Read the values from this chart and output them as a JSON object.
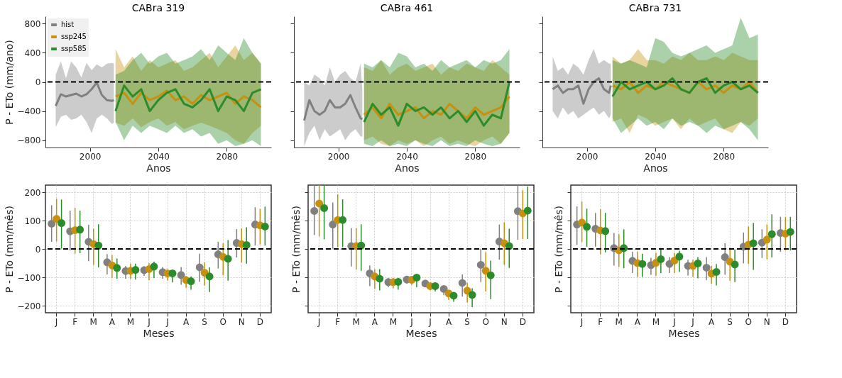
{
  "chart_data": [
    {
      "type": "line",
      "title": "CABra 319",
      "xlabel": "Anos",
      "ylabel": "P - ETo (mm/ano)",
      "xlim": [
        1974,
        2106
      ],
      "ylim": [
        -900,
        900
      ],
      "xticks": [
        2000,
        2040,
        2080
      ],
      "yticks": [
        -800,
        -400,
        0,
        400,
        800
      ],
      "legend": "top left",
      "ref_lines": [
        {
          "axis": "y",
          "value": 0,
          "color": "#000000",
          "line_style": "dashed"
        }
      ],
      "series": [
        {
          "name": "hist",
          "color": "#808080",
          "x": [
            1980,
            1983,
            1986,
            1989,
            1992,
            1995,
            1998,
            2001,
            2004,
            2007,
            2010,
            2013,
            2014
          ],
          "values": [
            -330,
            -170,
            -200,
            -180,
            -160,
            -200,
            -170,
            -100,
            -10,
            -180,
            -250,
            -260,
            -250
          ],
          "lower": [
            -620,
            -480,
            -450,
            -520,
            -500,
            -450,
            -550,
            -700,
            -500,
            -450,
            -500,
            -580,
            -560
          ],
          "upper": [
            100,
            280,
            50,
            280,
            200,
            60,
            260,
            160,
            240,
            200,
            250,
            260,
            250
          ]
        },
        {
          "name": "ssp245",
          "color": "#c8900e",
          "x": [
            2015,
            2020,
            2025,
            2030,
            2035,
            2040,
            2045,
            2050,
            2055,
            2060,
            2065,
            2070,
            2075,
            2080,
            2085,
            2090,
            2095,
            2100
          ],
          "values": [
            -200,
            -150,
            -300,
            -150,
            -250,
            -200,
            -120,
            -250,
            -200,
            -300,
            -180,
            -250,
            -200,
            -150,
            -300,
            -200,
            -250,
            -350
          ],
          "lower": [
            -560,
            -600,
            -500,
            -620,
            -550,
            -500,
            -600,
            -550,
            -650,
            -600,
            -560,
            -600,
            -650,
            -700,
            -800,
            -850,
            -700,
            -600
          ],
          "upper": [
            450,
            200,
            350,
            150,
            300,
            200,
            250,
            300,
            150,
            200,
            300,
            400,
            200,
            350,
            500,
            300,
            400,
            250
          ]
        },
        {
          "name": "ssp585",
          "color": "#2a8c2a",
          "x": [
            2015,
            2020,
            2025,
            2030,
            2035,
            2040,
            2045,
            2050,
            2055,
            2060,
            2065,
            2070,
            2075,
            2080,
            2085,
            2090,
            2095,
            2100
          ],
          "values": [
            -400,
            -50,
            -200,
            -100,
            -400,
            -250,
            -150,
            -100,
            -300,
            -350,
            -250,
            -100,
            -400,
            -200,
            -250,
            -400,
            -150,
            -100
          ],
          "lower": [
            -550,
            -800,
            -600,
            -700,
            -600,
            -650,
            -700,
            -600,
            -700,
            -650,
            -750,
            -700,
            -850,
            -800,
            -880,
            -850,
            -800,
            -880
          ],
          "upper": [
            100,
            150,
            300,
            400,
            250,
            350,
            400,
            250,
            300,
            350,
            450,
            300,
            500,
            400,
            300,
            600,
            400,
            250
          ]
        }
      ]
    },
    {
      "type": "line",
      "title": "CABra 461",
      "xlabel": "Anos",
      "xlim": [
        1974,
        2106
      ],
      "ylim": [
        -900,
        900
      ],
      "xticks": [
        2000,
        2040,
        2080
      ],
      "yticks": [
        -800,
        -400,
        0,
        400,
        800
      ],
      "tick_labels": "x",
      "ref_lines": [
        {
          "axis": "y",
          "value": 0,
          "color": "#000000",
          "line_style": "dashed"
        }
      ],
      "series": [
        {
          "color": "#808080",
          "x": [
            1980,
            1983,
            1986,
            1989,
            1992,
            1995,
            1998,
            2001,
            2004,
            2007,
            2010,
            2013,
            2014
          ],
          "values": [
            -530,
            -250,
            -400,
            -450,
            -400,
            -250,
            -350,
            -350,
            -300,
            -180,
            -350,
            -500,
            -510
          ],
          "lower": [
            -880,
            -700,
            -600,
            -800,
            -650,
            -750,
            -700,
            -650,
            -800,
            -700,
            -650,
            -750,
            -750
          ],
          "upper": [
            0,
            -50,
            100,
            50,
            -50,
            200,
            0,
            100,
            150,
            50,
            0,
            250,
            -100
          ]
        },
        {
          "color": "#c8900e",
          "x": [
            2015,
            2020,
            2025,
            2030,
            2035,
            2040,
            2045,
            2050,
            2055,
            2060,
            2065,
            2070,
            2075,
            2080,
            2085,
            2090,
            2095,
            2100
          ],
          "values": [
            -450,
            -350,
            -500,
            -300,
            -450,
            -400,
            -350,
            -500,
            -400,
            -450,
            -300,
            -400,
            -500,
            -350,
            -450,
            -400,
            -350,
            -200
          ],
          "lower": [
            -800,
            -750,
            -850,
            -880,
            -800,
            -850,
            -800,
            -880,
            -800,
            -750,
            -850,
            -800,
            -850,
            -880,
            -800,
            -750,
            -850,
            -700
          ],
          "upper": [
            200,
            150,
            300,
            100,
            200,
            250,
            150,
            200,
            250,
            100,
            200,
            150,
            250,
            200,
            150,
            300,
            200,
            100
          ]
        },
        {
          "color": "#2a8c2a",
          "x": [
            2015,
            2020,
            2025,
            2030,
            2035,
            2040,
            2045,
            2050,
            2055,
            2060,
            2065,
            2070,
            2075,
            2080,
            2085,
            2090,
            2095,
            2100
          ],
          "values": [
            -550,
            -300,
            -450,
            -350,
            -600,
            -300,
            -400,
            -350,
            -450,
            -350,
            -500,
            -400,
            -550,
            -400,
            -600,
            -450,
            -500,
            0
          ],
          "lower": [
            -850,
            -880,
            -800,
            -880,
            -850,
            -880,
            -800,
            -850,
            -880,
            -800,
            -880,
            -850,
            -880,
            -800,
            -850,
            -880,
            -850,
            -700
          ],
          "upper": [
            250,
            200,
            300,
            200,
            400,
            350,
            200,
            250,
            150,
            300,
            200,
            250,
            300,
            200,
            300,
            250,
            300,
            450
          ]
        }
      ]
    },
    {
      "type": "line",
      "title": "CABra 731",
      "xlabel": "Anos",
      "xlim": [
        1974,
        2106
      ],
      "ylim": [
        -900,
        900
      ],
      "xticks": [
        2000,
        2040,
        2080
      ],
      "yticks": [
        -800,
        -400,
        0,
        400,
        800
      ],
      "tick_labels": "x",
      "ref_lines": [
        {
          "axis": "y",
          "value": 0,
          "color": "#000000",
          "line_style": "dashed"
        }
      ],
      "series": [
        {
          "color": "#808080",
          "x": [
            1980,
            1983,
            1986,
            1989,
            1992,
            1995,
            1998,
            2001,
            2004,
            2007,
            2010,
            2013,
            2014
          ],
          "values": [
            -100,
            -50,
            -150,
            -100,
            -100,
            -50,
            -300,
            -100,
            0,
            50,
            -100,
            -150,
            -50
          ],
          "lower": [
            -400,
            -500,
            -350,
            -450,
            -400,
            -500,
            -450,
            -400,
            -350,
            -450,
            -400,
            -500,
            -450
          ],
          "upper": [
            350,
            150,
            200,
            100,
            250,
            200,
            100,
            300,
            450,
            250,
            300,
            250,
            250
          ]
        },
        {
          "color": "#c8900e",
          "x": [
            2015,
            2020,
            2025,
            2030,
            2035,
            2040,
            2045,
            2050,
            2055,
            2060,
            2065,
            2070,
            2075,
            2080,
            2085,
            2090,
            2095,
            2100
          ],
          "values": [
            -50,
            -100,
            0,
            -150,
            -50,
            -100,
            0,
            -50,
            -100,
            -150,
            0,
            -100,
            -50,
            -150,
            -50,
            -100,
            0,
            -150
          ],
          "lower": [
            -550,
            -500,
            -700,
            -450,
            -500,
            -600,
            -550,
            -500,
            -650,
            -500,
            -600,
            -550,
            -500,
            -650,
            -700,
            -550,
            -600,
            -500
          ],
          "upper": [
            350,
            250,
            300,
            450,
            300,
            300,
            250,
            350,
            300,
            400,
            300,
            300,
            350,
            300,
            400,
            350,
            300,
            300
          ]
        },
        {
          "color": "#2a8c2a",
          "x": [
            2015,
            2020,
            2025,
            2030,
            2035,
            2040,
            2045,
            2050,
            2055,
            2060,
            2065,
            2070,
            2075,
            2080,
            2085,
            2090,
            2095,
            2100
          ],
          "values": [
            -200,
            0,
            -100,
            -50,
            0,
            -100,
            -50,
            50,
            -100,
            -150,
            0,
            50,
            -150,
            -50,
            0,
            -100,
            -50,
            -150
          ],
          "lower": [
            -500,
            -700,
            -600,
            -500,
            -600,
            -550,
            -650,
            -500,
            -600,
            -550,
            -600,
            -700,
            -600,
            -650,
            -600,
            -550,
            -650,
            -800
          ],
          "upper": [
            300,
            250,
            300,
            250,
            200,
            600,
            550,
            400,
            350,
            400,
            450,
            500,
            400,
            450,
            500,
            880,
            600,
            650
          ]
        }
      ]
    },
    {
      "type": "scatter",
      "xlabel": "Meses",
      "ylabel": "P - ETo (mm/mês)",
      "categories": [
        "J",
        "F",
        "M",
        "A",
        "M",
        "J",
        "J",
        "A",
        "S",
        "O",
        "N",
        "D"
      ],
      "ylim": [
        -225,
        225
      ],
      "yticks": [
        -200,
        -100,
        0,
        100,
        200
      ],
      "grid": true,
      "marker": "circle",
      "ref_lines": [
        {
          "axis": "y",
          "value": 0,
          "color": "#000000",
          "line_style": "dashed"
        }
      ],
      "series": [
        {
          "color": "#808080",
          "values": [
            89,
            62,
            25,
            -47,
            -78,
            -75,
            -82,
            -92,
            -65,
            -19,
            21,
            86
          ],
          "errors": [
            [
              25,
              154
            ],
            [
              -5,
              135
            ],
            [
              -43,
              85
            ],
            [
              -90,
              -18
            ],
            [
              -105,
              -60
            ],
            [
              -95,
              -61
            ],
            [
              -105,
              -64
            ],
            [
              -126,
              -64
            ],
            [
              -116,
              -17
            ],
            [
              -69,
              25
            ],
            [
              -30,
              70
            ],
            [
              12,
              147
            ]
          ]
        },
        {
          "color": "#c8900e",
          "values": [
            106,
            66,
            17,
            -58,
            -77,
            -71,
            -86,
            -110,
            -84,
            -28,
            17,
            83
          ],
          "errors": [
            [
              26,
              177
            ],
            [
              -17,
              145
            ],
            [
              -56,
              71
            ],
            [
              -103,
              -22
            ],
            [
              -105,
              -52
            ],
            [
              -110,
              -50
            ],
            [
              -112,
              -73
            ],
            [
              -137,
              -95
            ],
            [
              -129,
              -47
            ],
            [
              -93,
              20
            ],
            [
              -48,
              72
            ],
            [
              16,
              141
            ]
          ]
        },
        {
          "color": "#2a8c2a",
          "values": [
            91,
            68,
            12,
            -67,
            -74,
            -62,
            -86,
            -114,
            -97,
            -35,
            14,
            79
          ],
          "errors": [
            [
              1,
              174
            ],
            [
              -15,
              135
            ],
            [
              -65,
              87
            ],
            [
              -105,
              -34
            ],
            [
              -108,
              -52
            ],
            [
              -103,
              -45
            ],
            [
              -118,
              -75
            ],
            [
              -144,
              -97
            ],
            [
              -152,
              -65
            ],
            [
              -112,
              31
            ],
            [
              -52,
              76
            ],
            [
              12,
              149
            ]
          ]
        }
      ]
    },
    {
      "type": "scatter",
      "xlabel": "Meses",
      "ylabel": "P - ETo (mm/mês)",
      "categories": [
        "J",
        "F",
        "M",
        "A",
        "M",
        "J",
        "J",
        "A",
        "S",
        "O",
        "N",
        "D"
      ],
      "ylim": [
        -225,
        225
      ],
      "yticks": [
        -200,
        -100,
        0,
        100,
        200
      ],
      "grid": true,
      "marker": "circle",
      "tick_labels": "x",
      "ref_lines": [
        {
          "axis": "y",
          "value": 0,
          "color": "#000000",
          "line_style": "dashed"
        }
      ],
      "series": [
        {
          "color": "#808080",
          "values": [
            134,
            86,
            10,
            -86,
            -117,
            -108,
            -122,
            -141,
            -120,
            -56,
            26,
            133
          ],
          "errors": [
            [
              49,
              225
            ],
            [
              1,
              164
            ],
            [
              -62,
              74
            ],
            [
              -131,
              -58
            ],
            [
              -135,
              -103
            ],
            [
              -122,
              -101
            ],
            [
              -133,
              -112
            ],
            [
              -163,
              -128
            ],
            [
              -168,
              -90
            ],
            [
              -117,
              1
            ],
            [
              -38,
              86
            ],
            [
              32,
              225
            ]
          ]
        },
        {
          "color": "#c8900e",
          "values": [
            160,
            102,
            10,
            -97,
            -117,
            -109,
            -131,
            -157,
            -147,
            -77,
            20,
            125
          ],
          "errors": [
            [
              44,
              225
            ],
            [
              6,
              192
            ],
            [
              -73,
              74
            ],
            [
              -141,
              -71
            ],
            [
              -139,
              -103
            ],
            [
              -127,
              -95
            ],
            [
              -146,
              -122
            ],
            [
              -180,
              -148
            ],
            [
              -189,
              -120
            ],
            [
              -150,
              -11
            ],
            [
              -56,
              94
            ],
            [
              35,
              207
            ]
          ]
        },
        {
          "color": "#2a8c2a",
          "values": [
            144,
            102,
            12,
            -105,
            -116,
            -101,
            -131,
            -165,
            -162,
            -93,
            10,
            135
          ],
          "errors": [
            [
              34,
              225
            ],
            [
              6,
              175
            ],
            [
              -77,
              87
            ],
            [
              -146,
              -71
            ],
            [
              -144,
              -102
            ],
            [
              -135,
              -94
            ],
            [
              -150,
              -120
            ],
            [
              -186,
              -156
            ],
            [
              -205,
              -139
            ],
            [
              -177,
              -41
            ],
            [
              -67,
              71
            ],
            [
              35,
              220
            ]
          ]
        }
      ]
    },
    {
      "type": "scatter",
      "xlabel": "Meses",
      "ylabel": "P - ETo (mm/mês)",
      "categories": [
        "J",
        "F",
        "M",
        "A",
        "M",
        "J",
        "J",
        "A",
        "S",
        "O",
        "N",
        "D"
      ],
      "ylim": [
        -225,
        225
      ],
      "yticks": [
        -200,
        -100,
        0,
        100,
        200
      ],
      "grid": true,
      "marker": "circle",
      "tick_labels": "x",
      "ref_lines": [
        {
          "axis": "y",
          "value": 0,
          "color": "#000000",
          "line_style": "dashed"
        }
      ],
      "series": [
        {
          "color": "#808080",
          "values": [
            86,
            71,
            3,
            -42,
            -57,
            -53,
            -60,
            -66,
            -29,
            8,
            22,
            56
          ],
          "errors": [
            [
              14,
              150
            ],
            [
              8,
              127
            ],
            [
              -59,
              56
            ],
            [
              -85,
              -10
            ],
            [
              -91,
              -31
            ],
            [
              -85,
              -29
            ],
            [
              -94,
              -38
            ],
            [
              -110,
              -29
            ],
            [
              -91,
              20
            ],
            [
              -51,
              58
            ],
            [
              -32,
              69
            ],
            [
              -10,
              113
            ]
          ]
        },
        {
          "color": "#c8900e",
          "values": [
            93,
            65,
            -5,
            -50,
            -49,
            -41,
            -60,
            -87,
            -45,
            15,
            33,
            54
          ],
          "errors": [
            [
              24,
              167
            ],
            [
              -19,
              140
            ],
            [
              -64,
              52
            ],
            [
              -99,
              -10
            ],
            [
              -95,
              -14
            ],
            [
              -85,
              -14
            ],
            [
              -99,
              -38
            ],
            [
              -123,
              -60
            ],
            [
              -113,
              5
            ],
            [
              -53,
              79
            ],
            [
              -36,
              86
            ],
            [
              -5,
              112
            ]
          ]
        },
        {
          "color": "#2a8c2a",
          "values": [
            78,
            63,
            3,
            -53,
            -36,
            -27,
            -51,
            -81,
            -55,
            20,
            52,
            60
          ],
          "errors": [
            [
              8,
              142
            ],
            [
              -12,
              127
            ],
            [
              -68,
              69
            ],
            [
              -99,
              -17
            ],
            [
              -85,
              3
            ],
            [
              -81,
              -6
            ],
            [
              -104,
              -29
            ],
            [
              -129,
              -53
            ],
            [
              -117,
              -2
            ],
            [
              -74,
              92
            ],
            [
              -30,
              122
            ],
            [
              -5,
              113
            ]
          ]
        }
      ]
    }
  ]
}
